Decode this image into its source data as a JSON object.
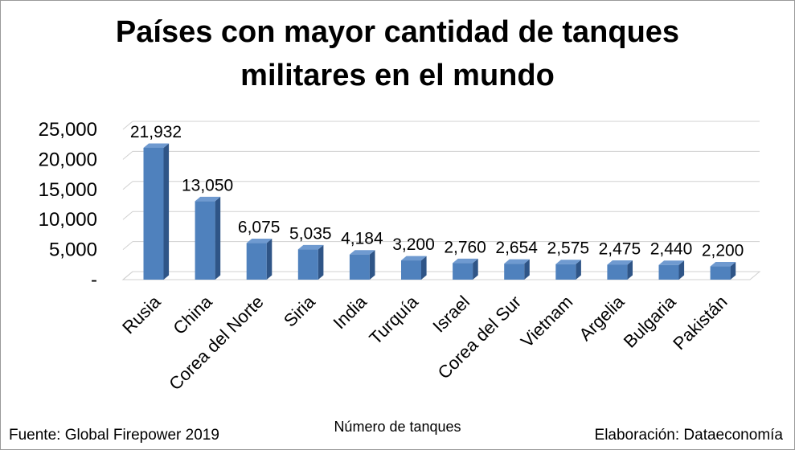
{
  "chart_data": {
    "type": "bar",
    "title_lines": [
      "Países con mayor cantidad de tanques",
      "militares en el mundo"
    ],
    "xlabel": "Número de tanques",
    "ylabel": "",
    "categories": [
      "Rusia",
      "China",
      "Corea del Norte",
      "Siria",
      "India",
      "Turquía",
      "Israel",
      "Corea del Sur",
      "Vietnam",
      "Argelia",
      "Bulgaria",
      "Pakistán"
    ],
    "values": [
      21932,
      13050,
      6075,
      5035,
      4184,
      3200,
      2760,
      2654,
      2575,
      2475,
      2440,
      2200
    ],
    "data_labels": [
      "21,932",
      "13,050",
      "6,075",
      "5,035",
      "4,184",
      "3,200",
      "2,760",
      "2,654",
      "2,575",
      "2,475",
      "2,440",
      "2,200"
    ],
    "yticks": [
      0,
      5000,
      10000,
      15000,
      20000,
      25000
    ],
    "ytick_labels": [
      "-",
      "5,000",
      "10,000",
      "15,000",
      "20,000",
      "25,000"
    ],
    "ylim": [
      0,
      25000
    ],
    "grid": true,
    "style": "3d-column",
    "bar_color": "#4f81bd"
  },
  "footer": {
    "source": "Fuente: Global Firepower 2019",
    "credit": "Elaboración: Dataeconomía"
  }
}
